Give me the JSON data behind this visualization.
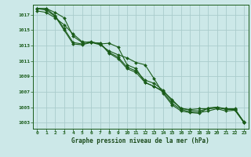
{
  "title": "Graphe pression niveau de la mer (hPa)",
  "bg_color": "#cce8e8",
  "grid_color": "#aacccc",
  "line_color": "#1a5c1a",
  "marker_color": "#1a5c1a",
  "x_ticks": [
    0,
    1,
    2,
    3,
    4,
    5,
    6,
    7,
    8,
    9,
    10,
    11,
    12,
    13,
    14,
    15,
    16,
    17,
    18,
    19,
    20,
    21,
    22,
    23
  ],
  "y_ticks": [
    1003,
    1005,
    1007,
    1009,
    1011,
    1013,
    1015,
    1017
  ],
  "ylim": [
    1002.2,
    1018.3
  ],
  "xlim": [
    -0.5,
    23.5
  ],
  "lines": [
    [
      1017.8,
      1017.8,
      1017.3,
      1016.6,
      1014.2,
      1013.4,
      1013.5,
      1013.2,
      1013.3,
      1012.8,
      1010.5,
      1010.0,
      1008.2,
      1007.7,
      1007.1,
      1006.0,
      1004.8,
      1004.7,
      1004.8,
      1004.8,
      1004.9,
      1004.8,
      1004.8,
      1003.0
    ],
    [
      1017.8,
      1017.8,
      1016.9,
      1015.2,
      1013.4,
      1013.2,
      1013.4,
      1013.3,
      1012.1,
      1011.5,
      1010.2,
      1009.7,
      1008.5,
      1008.1,
      1007.2,
      1005.8,
      1004.9,
      1004.6,
      1004.5,
      1004.8,
      1005.0,
      1004.7,
      1004.7,
      1003.1
    ],
    [
      1017.8,
      1017.6,
      1016.8,
      1015.0,
      1013.2,
      1013.1,
      1013.4,
      1013.3,
      1012.0,
      1011.3,
      1010.0,
      1009.5,
      1008.2,
      1007.7,
      1007.0,
      1005.5,
      1004.7,
      1004.4,
      1004.3,
      1004.5,
      1004.8,
      1004.5,
      1004.6,
      1003.0
    ],
    [
      1017.5,
      1017.3,
      1016.6,
      1015.7,
      1014.5,
      1013.5,
      1013.4,
      1013.1,
      1012.3,
      1011.8,
      1011.4,
      1010.8,
      1010.5,
      1008.7,
      1006.8,
      1005.3,
      1004.5,
      1004.3,
      1004.2,
      1004.9,
      1005.0,
      1004.8,
      1004.6,
      1003.0
    ]
  ]
}
